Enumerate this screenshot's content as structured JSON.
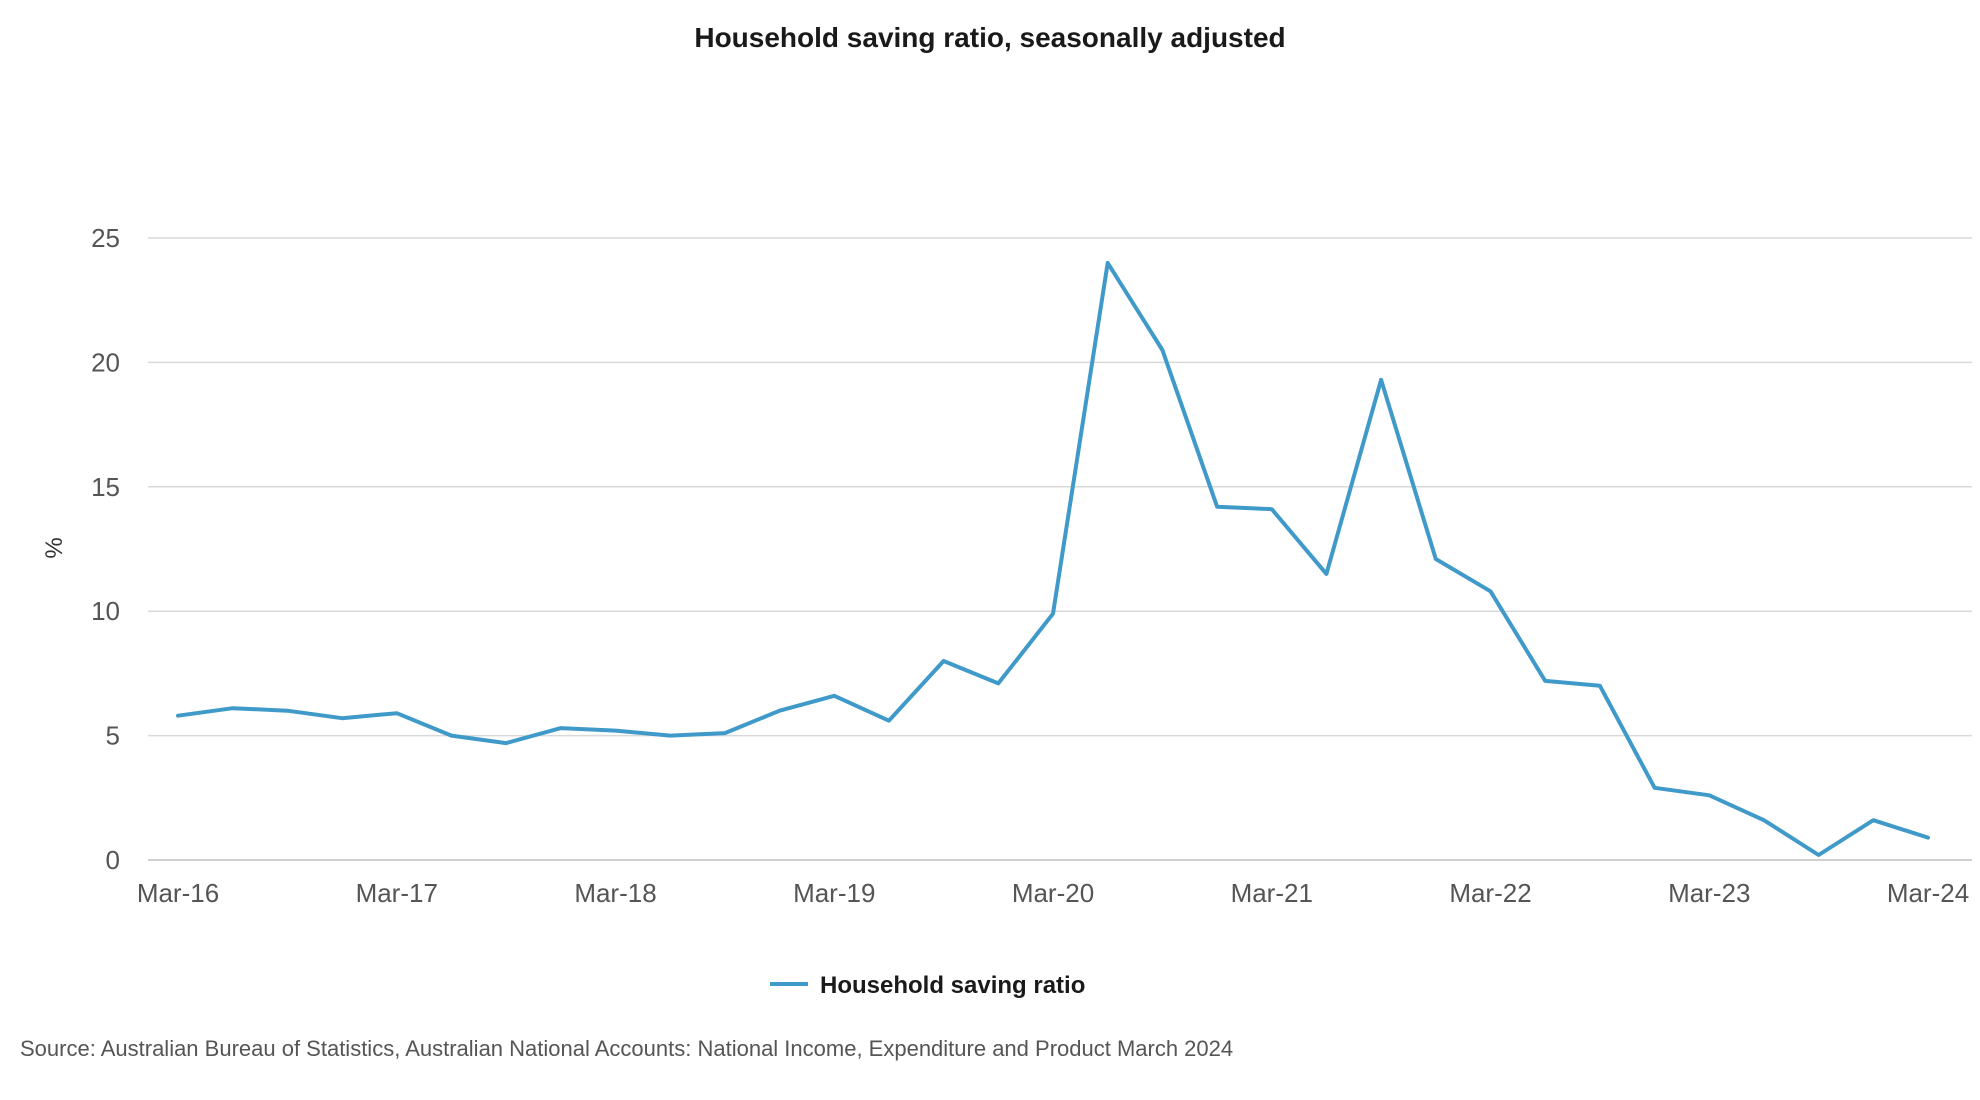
{
  "chart_data": {
    "type": "line",
    "title": "Household saving ratio, seasonally adjusted",
    "ylabel": "%",
    "xlabel": "",
    "ylim": [
      0,
      25
    ],
    "yticks": [
      0,
      5,
      10,
      15,
      20,
      25
    ],
    "xtick_labels": [
      "Mar-16",
      "Mar-17",
      "Mar-18",
      "Mar-19",
      "Mar-20",
      "Mar-21",
      "Mar-22",
      "Mar-23",
      "Mar-24"
    ],
    "grid": true,
    "legend_position": "bottom",
    "x": [
      "Mar-16",
      "Jun-16",
      "Sep-16",
      "Dec-16",
      "Mar-17",
      "Jun-17",
      "Sep-17",
      "Dec-17",
      "Mar-18",
      "Jun-18",
      "Sep-18",
      "Dec-18",
      "Mar-19",
      "Jun-19",
      "Sep-19",
      "Dec-19",
      "Mar-20",
      "Jun-20",
      "Sep-20",
      "Dec-20",
      "Mar-21",
      "Jun-21",
      "Sep-21",
      "Dec-21",
      "Mar-22",
      "Jun-22",
      "Sep-22",
      "Dec-22",
      "Mar-23",
      "Jun-23",
      "Sep-23",
      "Dec-23",
      "Mar-24"
    ],
    "series": [
      {
        "name": "Household saving ratio",
        "color": "#3f9ac9",
        "values": [
          5.8,
          6.1,
          6.0,
          5.7,
          5.9,
          5.0,
          4.7,
          5.3,
          5.2,
          5.0,
          5.1,
          6.0,
          6.6,
          5.6,
          8.0,
          7.1,
          9.9,
          24.0,
          20.5,
          14.2,
          14.1,
          11.5,
          19.3,
          12.1,
          10.8,
          7.2,
          7.0,
          2.9,
          2.6,
          1.6,
          0.2,
          1.6,
          0.9
        ]
      }
    ],
    "source": "Source: Australian Bureau of Statistics, Australian National Accounts: National Income, Expenditure and Product March 2024"
  }
}
